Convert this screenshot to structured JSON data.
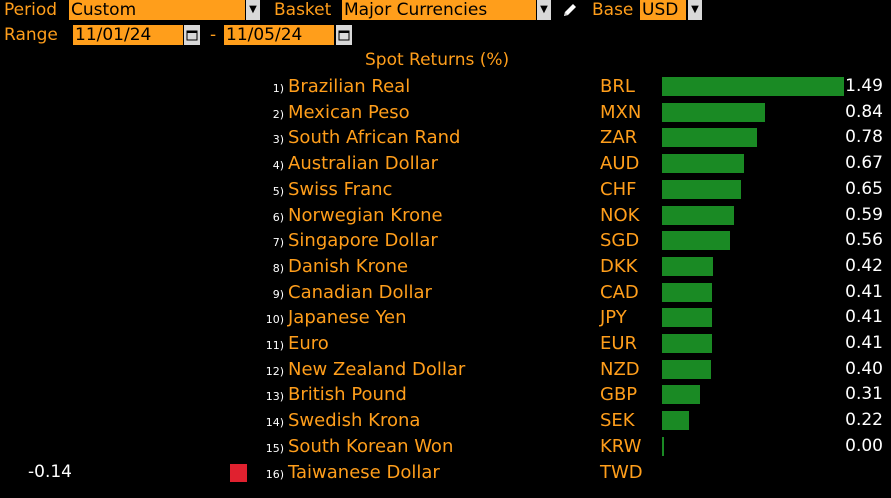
{
  "header": {
    "period_label": "Period",
    "period_value": "Custom",
    "basket_label": "Basket",
    "basket_value": "Major Currencies",
    "base_label": "Base",
    "base_value": "USD",
    "range_label": "Range",
    "range_start": "11/01/24",
    "range_sep": "-",
    "range_end": "11/05/24"
  },
  "icons": {
    "dropdown": "chevron-down-icon",
    "calendar": "calendar-icon",
    "edit": "pencil-icon"
  },
  "colors": {
    "accent": "#ff9e1b",
    "positive_bar": "#1a8a24",
    "negative_bar": "#e0212f",
    "background": "#000000"
  },
  "chart_data": {
    "type": "bar",
    "title": "Spot Returns (%)",
    "max_value": 1.49,
    "rows": [
      {
        "rank": "1)",
        "name": "Brazilian Real",
        "code": "BRL",
        "value": 1.49,
        "label": "1.49"
      },
      {
        "rank": "2)",
        "name": "Mexican Peso",
        "code": "MXN",
        "value": 0.84,
        "label": "0.84"
      },
      {
        "rank": "3)",
        "name": "South African Rand",
        "code": "ZAR",
        "value": 0.78,
        "label": "0.78"
      },
      {
        "rank": "4)",
        "name": "Australian Dollar",
        "code": "AUD",
        "value": 0.67,
        "label": "0.67"
      },
      {
        "rank": "5)",
        "name": "Swiss Franc",
        "code": "CHF",
        "value": 0.65,
        "label": "0.65"
      },
      {
        "rank": "6)",
        "name": "Norwegian Krone",
        "code": "NOK",
        "value": 0.59,
        "label": "0.59"
      },
      {
        "rank": "7)",
        "name": "Singapore Dollar",
        "code": "SGD",
        "value": 0.56,
        "label": "0.56"
      },
      {
        "rank": "8)",
        "name": "Danish Krone",
        "code": "DKK",
        "value": 0.42,
        "label": "0.42"
      },
      {
        "rank": "9)",
        "name": "Canadian Dollar",
        "code": "CAD",
        "value": 0.41,
        "label": "0.41"
      },
      {
        "rank": "10)",
        "name": "Japanese Yen",
        "code": "JPY",
        "value": 0.41,
        "label": "0.41"
      },
      {
        "rank": "11)",
        "name": "Euro",
        "code": "EUR",
        "value": 0.41,
        "label": "0.41"
      },
      {
        "rank": "12)",
        "name": "New Zealand Dollar",
        "code": "NZD",
        "value": 0.4,
        "label": "0.40"
      },
      {
        "rank": "13)",
        "name": "British Pound",
        "code": "GBP",
        "value": 0.31,
        "label": "0.31"
      },
      {
        "rank": "14)",
        "name": "Swedish Krona",
        "code": "SEK",
        "value": 0.22,
        "label": "0.22"
      },
      {
        "rank": "15)",
        "name": "South Korean Won",
        "code": "KRW",
        "value": 0.0,
        "label": "0.00"
      },
      {
        "rank": "16)",
        "name": "Taiwanese Dollar",
        "code": "TWD",
        "value": -0.14,
        "label": "-0.14"
      }
    ]
  }
}
